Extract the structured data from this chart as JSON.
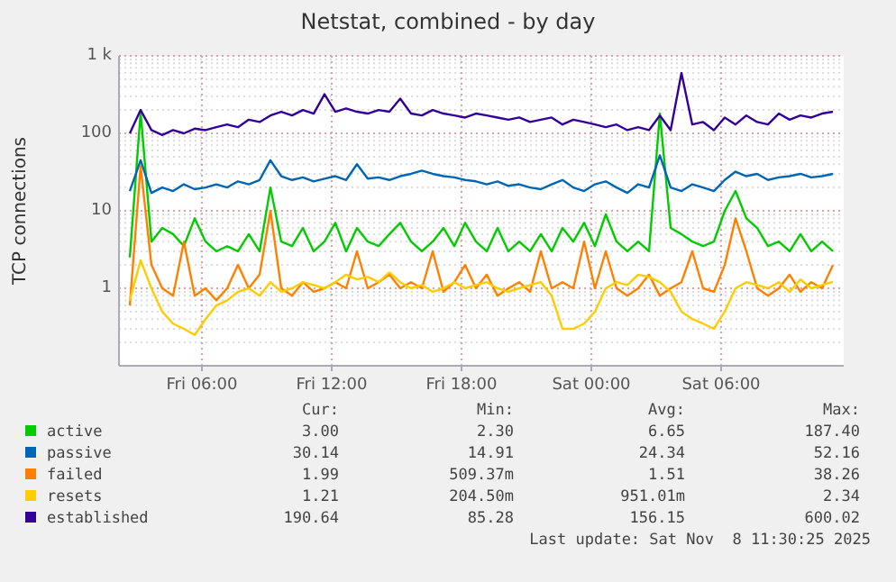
{
  "chart_data": {
    "type": "line",
    "title": "Netstat, combined - by day",
    "ylabel": "TCP connections",
    "log": "y",
    "grid": true,
    "legend": "bottom",
    "line_style": "solid",
    "marker": "none",
    "x": [
      "2025-11-07T02:40",
      "2025-11-07T03:10",
      "2025-11-07T03:40",
      "2025-11-07T04:10",
      "2025-11-07T04:40",
      "2025-11-07T05:10",
      "2025-11-07T05:40",
      "2025-11-07T06:10",
      "2025-11-07T06:40",
      "2025-11-07T07:10",
      "2025-11-07T07:40",
      "2025-11-07T08:10",
      "2025-11-07T08:40",
      "2025-11-07T09:10",
      "2025-11-07T09:40",
      "2025-11-07T10:10",
      "2025-11-07T10:40",
      "2025-11-07T11:10",
      "2025-11-07T11:40",
      "2025-11-07T12:10",
      "2025-11-07T12:40",
      "2025-11-07T13:10",
      "2025-11-07T13:40",
      "2025-11-07T14:10",
      "2025-11-07T14:40",
      "2025-11-07T15:10",
      "2025-11-07T15:40",
      "2025-11-07T16:10",
      "2025-11-07T16:40",
      "2025-11-07T17:10",
      "2025-11-07T17:40",
      "2025-11-07T18:10",
      "2025-11-07T18:40",
      "2025-11-07T19:10",
      "2025-11-07T19:40",
      "2025-11-07T20:10",
      "2025-11-07T20:40",
      "2025-11-07T21:10",
      "2025-11-07T21:40",
      "2025-11-07T22:10",
      "2025-11-07T22:40",
      "2025-11-07T23:10",
      "2025-11-07T23:40",
      "2025-11-08T00:10",
      "2025-11-08T00:40",
      "2025-11-08T01:10",
      "2025-11-08T01:40",
      "2025-11-08T02:10",
      "2025-11-08T02:40",
      "2025-11-08T03:10",
      "2025-11-08T03:40",
      "2025-11-08T04:10",
      "2025-11-08T04:40",
      "2025-11-08T05:10",
      "2025-11-08T05:40",
      "2025-11-08T06:10",
      "2025-11-08T06:40",
      "2025-11-08T07:10",
      "2025-11-08T07:40",
      "2025-11-08T08:10",
      "2025-11-08T08:40",
      "2025-11-08T09:10",
      "2025-11-08T09:40",
      "2025-11-08T10:10",
      "2025-11-08T10:40",
      "2025-11-08T11:10"
    ],
    "xlim": [
      "2025-11-07T02:10",
      "2025-11-08T11:40"
    ],
    "xticks": [
      {
        "value": "2025-11-07T06:00",
        "label": "Fri 06:00"
      },
      {
        "value": "2025-11-07T12:00",
        "label": "Fri 12:00"
      },
      {
        "value": "2025-11-07T18:00",
        "label": "Fri 18:00"
      },
      {
        "value": "2025-11-08T00:00",
        "label": "Sat 00:00"
      },
      {
        "value": "2025-11-08T06:00",
        "label": "Sat 06:00"
      }
    ],
    "ylim": [
      0.1,
      1000
    ],
    "yticks": [
      1,
      10,
      100,
      {
        "value": 1000,
        "label": "1 k"
      }
    ],
    "series": [
      {
        "name": "active",
        "color": "#00cc00",
        "values": [
          2.5,
          187,
          4,
          6,
          5,
          3.5,
          8,
          4,
          3,
          3.5,
          3,
          5,
          3,
          20,
          4,
          3.5,
          6,
          3,
          4,
          7,
          3,
          6,
          4,
          3.5,
          5,
          7,
          4,
          3,
          4,
          6,
          3.5,
          7,
          4,
          3,
          6,
          3,
          4,
          3,
          5,
          3,
          6,
          4,
          7,
          3.5,
          9,
          4,
          3,
          4,
          3,
          180,
          6,
          5,
          4,
          3.5,
          4,
          10,
          18,
          8,
          6,
          3.5,
          4,
          3,
          5,
          3,
          4,
          3
        ]
      },
      {
        "name": "passive",
        "color": "#0066b3",
        "values": [
          18,
          45,
          17,
          20,
          18,
          22,
          19,
          20,
          22,
          20,
          24,
          22,
          25,
          45,
          28,
          25,
          27,
          24,
          26,
          28,
          25,
          40,
          26,
          27,
          25,
          28,
          30,
          33,
          30,
          28,
          27,
          25,
          24,
          22,
          24,
          21,
          22,
          20,
          19,
          22,
          25,
          20,
          18,
          22,
          24,
          20,
          17,
          22,
          20,
          52,
          20,
          18,
          22,
          20,
          18,
          25,
          32,
          28,
          30,
          25,
          27,
          28,
          30,
          27,
          28,
          30
        ]
      },
      {
        "name": "failed",
        "color": "#ff8000",
        "values": [
          0.6,
          38,
          2,
          1,
          0.8,
          4,
          0.8,
          1,
          0.7,
          1,
          2,
          1,
          1.5,
          10,
          1,
          0.8,
          1.2,
          0.9,
          1,
          1.2,
          1,
          3,
          1,
          1.2,
          1.5,
          1,
          1.2,
          1,
          3,
          0.9,
          1.2,
          2,
          1,
          1.5,
          0.8,
          1,
          1.2,
          0.9,
          3,
          1,
          1.2,
          1,
          4,
          1,
          3,
          1,
          0.8,
          1,
          1.5,
          0.8,
          1,
          1.2,
          3,
          1,
          0.9,
          2,
          8,
          3,
          1,
          0.8,
          1,
          1.5,
          0.9,
          1.2,
          1,
          1.99
        ]
      },
      {
        "name": "resets",
        "color": "#ffcc00",
        "values": [
          0.7,
          2.3,
          1,
          0.5,
          0.35,
          0.3,
          0.25,
          0.4,
          0.6,
          0.7,
          0.9,
          1,
          0.8,
          1.2,
          0.9,
          1,
          1.2,
          1.1,
          1,
          1.2,
          1.5,
          1.3,
          1.4,
          1.2,
          1.6,
          1.2,
          1,
          1.1,
          0.9,
          1,
          1.2,
          1,
          1.1,
          1.2,
          1,
          0.9,
          1,
          1.1,
          1.2,
          0.8,
          0.3,
          0.3,
          0.35,
          0.5,
          1,
          1.2,
          1.1,
          1.5,
          1.4,
          1.2,
          0.9,
          0.5,
          0.4,
          0.35,
          0.3,
          0.5,
          1,
          1.2,
          1.1,
          1,
          1.2,
          0.9,
          1.3,
          1,
          1.1,
          1.21
        ]
      },
      {
        "name": "established",
        "color": "#330099",
        "values": [
          100,
          200,
          110,
          95,
          110,
          100,
          115,
          110,
          120,
          130,
          120,
          150,
          140,
          170,
          190,
          170,
          200,
          180,
          320,
          190,
          210,
          190,
          180,
          200,
          190,
          280,
          180,
          170,
          200,
          180,
          170,
          160,
          180,
          170,
          160,
          150,
          160,
          140,
          150,
          160,
          130,
          150,
          140,
          130,
          120,
          130,
          110,
          120,
          110,
          170,
          110,
          600,
          130,
          140,
          110,
          160,
          130,
          170,
          140,
          130,
          180,
          150,
          170,
          160,
          180,
          190
        ]
      }
    ],
    "annotations": [
      "Cur:",
      "Min:",
      "Avg:",
      "Max:",
      "3.00",
      "2.30",
      "6.65",
      "187.40",
      "30.14",
      "14.91",
      "24.34",
      "52.16",
      "1.99",
      "509.37m",
      "1.51",
      "38.26",
      "1.21",
      "204.50m",
      "951.01m",
      "2.34",
      "190.64",
      "85.28",
      "156.15",
      "600.02",
      "Last update: Sat Nov  8 11:30:25 2025"
    ]
  }
}
